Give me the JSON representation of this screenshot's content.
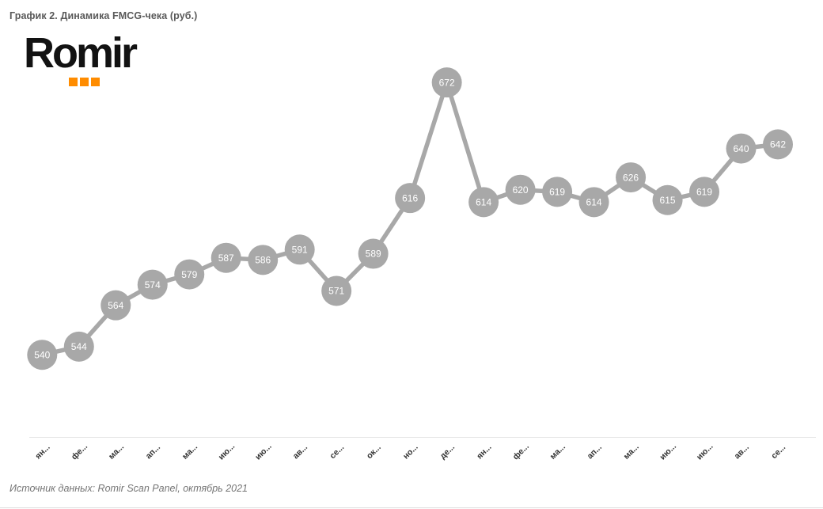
{
  "page": {
    "title": "График 2. Динамика FMCG-чека (руб.)",
    "logo_text": "Romir",
    "source_note": "Источник данных: Romir Scan Panel, октябрь 2021"
  },
  "colors": {
    "series_gray": "#a8a8a8",
    "point_value_text": "#ffffff",
    "axis_line": "#e5e5e5",
    "tick_label": "#333333",
    "title_text": "#595959",
    "source_text": "#757575",
    "logo_black": "#121212",
    "logo_orange": "#ff8c00",
    "bottom_border": "#dcdcdc"
  },
  "chart_data": {
    "type": "line",
    "title": "Динамика FMCG-чека (руб.)",
    "categories": [
      "ян...",
      "фе...",
      "ма...",
      "ап...",
      "ма...",
      "ию...",
      "ию...",
      "ав...",
      "се...",
      "ок...",
      "но...",
      "де...",
      "ян...",
      "фе...",
      "ма...",
      "ап...",
      "ма...",
      "ию...",
      "ию...",
      "ав...",
      "се..."
    ],
    "values": [
      540,
      544,
      564,
      574,
      579,
      587,
      586,
      591,
      571,
      589,
      616,
      672,
      614,
      620,
      619,
      614,
      626,
      615,
      619,
      640,
      642
    ],
    "xlabel": "",
    "ylabel": "",
    "ylim": [
      500,
      680
    ],
    "grid": false,
    "legend": "none",
    "marker_style": "filled-circle-with-value-label",
    "x_label_rotation": -45
  }
}
